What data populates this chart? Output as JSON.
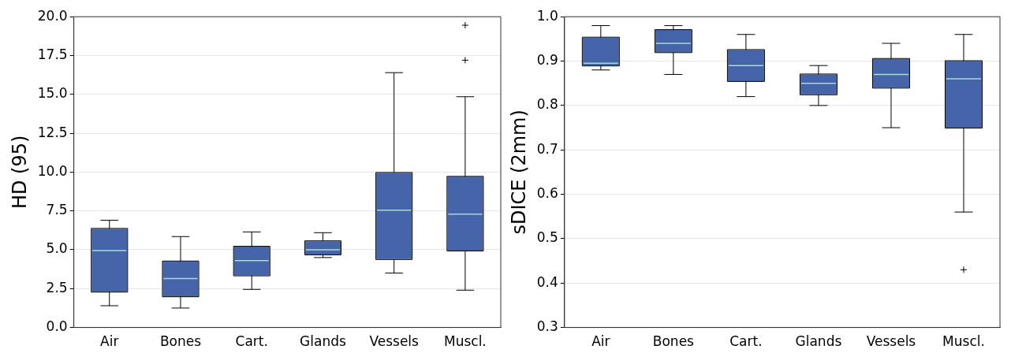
{
  "chart_data": [
    {
      "type": "box",
      "ylabel": "HD (95)",
      "categories": [
        "Air",
        "Bones",
        "Cart.",
        "Glands",
        "Vessels",
        "Muscl."
      ],
      "color": "#4664aa",
      "grid": "y",
      "ylim": [
        0,
        20
      ],
      "yticks": [
        {
          "value": 0,
          "label": "0.0"
        },
        2.5,
        {
          "value": 5,
          "label": "5.0"
        },
        7.5,
        {
          "value": 10,
          "label": "10.0"
        },
        12.5,
        {
          "value": 15,
          "label": "15.0"
        },
        17.5,
        {
          "value": 20,
          "label": "20.0"
        }
      ],
      "boxes": [
        {
          "low": 1.4,
          "q1": 2.3,
          "median": 4.95,
          "q3": 6.35,
          "high": 6.9
        },
        {
          "low": 1.25,
          "q1": 2.0,
          "median": 3.15,
          "q3": 4.25,
          "high": 5.85
        },
        {
          "low": 2.45,
          "q1": 3.35,
          "median": 4.3,
          "q3": 5.2,
          "high": 6.15
        },
        {
          "low": 4.5,
          "q1": 4.7,
          "median": 5.0,
          "q3": 5.55,
          "high": 6.1
        },
        {
          "low": 3.5,
          "q1": 4.4,
          "median": 7.55,
          "q3": 9.95,
          "high": 16.4
        },
        {
          "low": 2.4,
          "q1": 4.95,
          "median": 7.3,
          "q3": 9.7,
          "high": 14.85,
          "outliers": [
            17.2,
            19.45
          ]
        }
      ]
    },
    {
      "type": "box",
      "ylabel": "sDICE (2mm)",
      "categories": [
        "Air",
        "Bones",
        "Cart.",
        "Glands",
        "Vessels",
        "Muscl."
      ],
      "color": "#4664aa",
      "grid": "y",
      "ylim": [
        0.3,
        1.0
      ],
      "yticks": [
        0.3,
        0.4,
        0.5,
        0.6,
        0.7,
        0.8,
        0.9,
        {
          "value": 1.0,
          "label": "1.0"
        }
      ],
      "boxes": [
        {
          "low": 0.88,
          "q1": 0.89,
          "median": 0.895,
          "q3": 0.953,
          "high": 0.98
        },
        {
          "low": 0.87,
          "q1": 0.92,
          "median": 0.94,
          "q3": 0.97,
          "high": 0.98
        },
        {
          "low": 0.82,
          "q1": 0.855,
          "median": 0.89,
          "q3": 0.925,
          "high": 0.96
        },
        {
          "low": 0.8,
          "q1": 0.825,
          "median": 0.85,
          "q3": 0.87,
          "high": 0.89
        },
        {
          "low": 0.75,
          "q1": 0.84,
          "median": 0.87,
          "q3": 0.905,
          "high": 0.94
        },
        {
          "low": 0.56,
          "q1": 0.75,
          "median": 0.86,
          "q3": 0.9,
          "high": 0.96,
          "outliers": [
            0.43
          ]
        }
      ]
    }
  ]
}
